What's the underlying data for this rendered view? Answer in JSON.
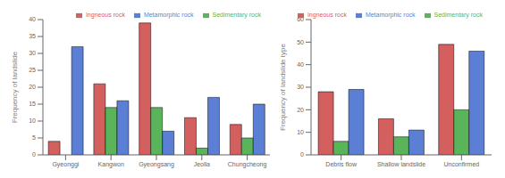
{
  "chart_data": [
    {
      "type": "bar",
      "categories": [
        "Gyeonggi",
        "Kangwon",
        "Gyeongsang",
        "Jeolla",
        "Chungcheong"
      ],
      "series": [
        {
          "name": "Ingneous rock",
          "color": "#d45f5f",
          "values": [
            4,
            21,
            39,
            11,
            9
          ]
        },
        {
          "name": "Sedimentary rock",
          "color": "#5ab45a",
          "values": [
            0,
            14,
            14,
            2,
            5
          ]
        },
        {
          "name": "Metamorphic rock",
          "color": "#5b7fd4",
          "values": [
            32,
            16,
            7,
            17,
            15
          ]
        }
      ],
      "ylabel": "Frequency of landslide",
      "ylim": [
        0,
        40
      ],
      "yticks": [
        0,
        5,
        10,
        15,
        20,
        25,
        30,
        35,
        40
      ],
      "grid": false,
      "legend": "upper right"
    },
    {
      "type": "bar",
      "categories": [
        "Debris flow",
        "Shallow landslide",
        "Unconfirmed"
      ],
      "series": [
        {
          "name": "Ingneous rock",
          "color": "#d45f5f",
          "values": [
            28,
            16,
            49
          ]
        },
        {
          "name": "Sedimentary rock",
          "color": "#5ab45a",
          "values": [
            6,
            8,
            20
          ]
        },
        {
          "name": "Metamorphic rock",
          "color": "#5b7fd4",
          "values": [
            29,
            11,
            46
          ]
        }
      ],
      "ylabel": "Frequency of landslide type",
      "ylim": [
        0,
        60
      ],
      "yticks": [
        0,
        10,
        20,
        30,
        40,
        50,
        60
      ],
      "grid": false,
      "legend": "upper right"
    }
  ]
}
